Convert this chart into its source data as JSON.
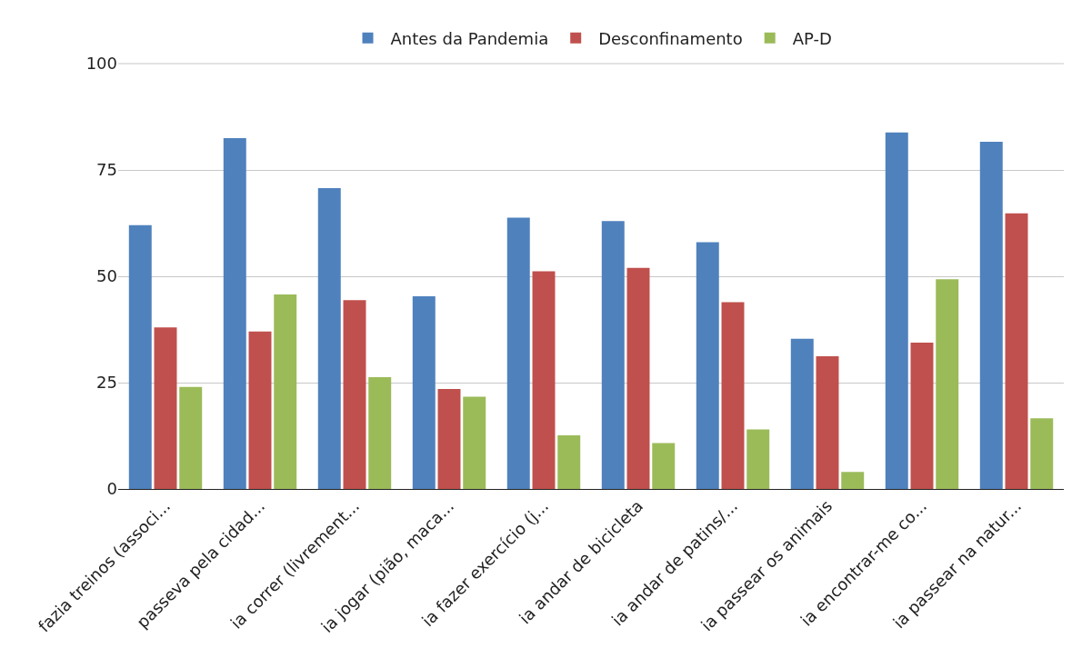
{
  "chart_data": {
    "type": "bar",
    "categories": [
      "fazia treinos (associ...",
      "passeva pela cidad...",
      "ia correr (livrement...",
      "ia jogar (pião, maca...",
      "ia fazer exercício (j...",
      "ia andar de bicicleta",
      "ia andar de patins/...",
      "ia passear os animais",
      "ia encontrar-me co...",
      "ia passear na natur..."
    ],
    "series": [
      {
        "name": "Antes da Pandemia",
        "color": "#4f81bd",
        "values": [
          62,
          82.5,
          70.7,
          45.3,
          63.8,
          63,
          58,
          35.3,
          83.8,
          81.6
        ]
      },
      {
        "name": "Desconfinamento",
        "color": "#c0504d",
        "values": [
          38,
          37,
          44.4,
          23.5,
          51.2,
          52,
          43.9,
          31.2,
          34.4,
          64.8
        ]
      },
      {
        "name": "AP-D",
        "color": "#9bbb59",
        "values": [
          24,
          45.7,
          26.3,
          21.7,
          12.6,
          10.8,
          14,
          4,
          49.3,
          16.6
        ]
      }
    ],
    "ylim": [
      0,
      100
    ],
    "yticks": [
      0,
      25,
      50,
      75,
      100
    ],
    "grid": "y",
    "legend": "top"
  }
}
